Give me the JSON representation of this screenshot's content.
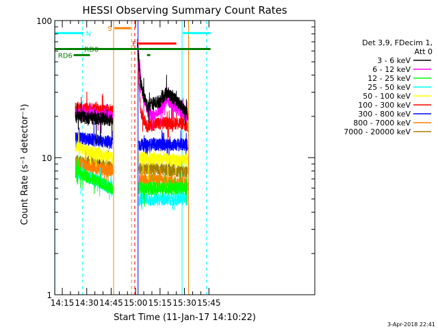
{
  "chart_data": {
    "type": "line",
    "title": "HESSI Observing Summary Count Rates",
    "xlabel": "Start Time (11-Jan-17 14:10:22)",
    "ylabel": "Count Rate (s⁻¹ detector⁻¹)",
    "yscale": "log",
    "ylim": [
      1,
      100
    ],
    "xlim_min_after_14_00": [
      10.37,
      170
    ],
    "y_ticks": [
      "1",
      "10",
      "100"
    ],
    "x_ticks": [
      {
        "label": "14:15",
        "min": 15
      },
      {
        "label": "14:30",
        "min": 30
      },
      {
        "label": "14:45",
        "min": 45
      },
      {
        "label": "15:00",
        "min": 60
      },
      {
        "label": "15:15",
        "min": 75
      },
      {
        "label": "15:30",
        "min": 90
      },
      {
        "label": "15:45",
        "min": 105
      }
    ],
    "legend": {
      "placement": "right",
      "header": [
        "Det 3,9, FDecim 1,",
        "Att 0"
      ]
    },
    "series": [
      {
        "name": "3 - 6 keV",
        "color": "#000000",
        "segments": [
          [
            [
              23,
              20
            ],
            [
              46,
              19
            ]
          ],
          [
            [
              61,
              70
            ],
            [
              63,
              35
            ],
            [
              67,
              24
            ],
            [
              75,
              26
            ],
            [
              79,
              30
            ],
            [
              87,
              25
            ],
            [
              92,
              21
            ]
          ]
        ]
      },
      {
        "name": "6 - 12 keV",
        "color": "#ff00ff",
        "segments": [
          [
            [
              23,
              21
            ],
            [
              46,
              20
            ]
          ],
          [
            [
              61,
              75
            ],
            [
              64,
              30
            ],
            [
              68,
              21
            ],
            [
              72,
              20
            ],
            [
              79,
              27
            ],
            [
              87,
              22
            ],
            [
              92,
              20
            ]
          ]
        ]
      },
      {
        "name": "12 - 25 keV",
        "color": "#00ff00",
        "segments": [
          [
            [
              23,
              8
            ],
            [
              46,
              6
            ]
          ],
          [
            [
              62,
              6
            ],
            [
              92,
              6
            ]
          ]
        ]
      },
      {
        "name": "25 - 50 keV",
        "color": "#00ffff",
        "segments": [
          [
            [
              23,
              8
            ],
            [
              46,
              6
            ]
          ],
          [
            [
              62,
              5
            ],
            [
              92,
              5
            ]
          ]
        ]
      },
      {
        "name": "50 - 100 keV",
        "color": "#ffff00",
        "segments": [
          [
            [
              23,
              12
            ],
            [
              46,
              10
            ]
          ],
          [
            [
              62,
              10
            ],
            [
              92,
              9.5
            ]
          ]
        ]
      },
      {
        "name": "100 - 300 keV",
        "color": "#ff0000",
        "segments": [
          [
            [
              23,
              23
            ],
            [
              46,
              22
            ]
          ],
          [
            [
              61,
              66
            ],
            [
              63,
              22
            ],
            [
              67,
              17
            ],
            [
              75,
              18
            ],
            [
              87,
              18
            ],
            [
              92,
              17
            ]
          ]
        ]
      },
      {
        "name": "300 - 800 keV",
        "color": "#0000ff",
        "segments": [
          [
            [
              23,
              14
            ],
            [
              46,
              13
            ]
          ],
          [
            [
              62,
              12.5
            ],
            [
              92,
              12.5
            ]
          ]
        ]
      },
      {
        "name": "800 - 7000 keV",
        "color": "#ff8000",
        "segments": [
          [
            [
              23,
              9
            ],
            [
              46,
              8
            ]
          ],
          [
            [
              62,
              7
            ],
            [
              92,
              6.5
            ]
          ]
        ]
      },
      {
        "name": "7000 - 20000 keV",
        "color": "#a08000",
        "segments": [
          [
            [
              23,
              9.5
            ],
            [
              46,
              8.5
            ]
          ],
          [
            [
              62,
              8.5
            ],
            [
              92,
              8
            ]
          ]
        ]
      }
    ],
    "annotations": {
      "vertical_lines": [
        {
          "min": 10.5,
          "color": "#00ffff",
          "style": "solid"
        },
        {
          "min": 27.5,
          "color": "#00ffff",
          "style": "dashed"
        },
        {
          "min": 46.5,
          "color": "#ff8000",
          "style": "solid"
        },
        {
          "min": 57.5,
          "color": "#ff8000",
          "style": "dashed"
        },
        {
          "min": 59.5,
          "color": "#ff0000",
          "style": "dashed"
        },
        {
          "min": 61.5,
          "color": "#0000ff",
          "style": "solid"
        },
        {
          "min": 88.5,
          "color": "#00ffff",
          "style": "solid"
        },
        {
          "min": 92.5,
          "color": "#ff8000",
          "style": "solid"
        },
        {
          "min": 103.5,
          "color": "#00ffff",
          "style": "dashed"
        }
      ],
      "flag_bars": [
        {
          "label": "N",
          "color": "#00ffff",
          "y": 81,
          "ranges": [
            [
              10.37,
              28
            ],
            [
              89,
              106
            ]
          ]
        },
        {
          "label": "S",
          "color": "#ff8000",
          "y": 88,
          "ranges": [
            [
              47,
              57
            ]
          ]
        },
        {
          "label": "F",
          "color": "#ff0000",
          "y": 68,
          "ranges": [
            [
              61,
              85
            ]
          ]
        },
        {
          "label": "RD0",
          "color": "#008000",
          "y": 62,
          "ranges": [
            [
              10.37,
              106
            ]
          ]
        },
        {
          "label": "RD6",
          "color": "#008000",
          "y": 56,
          "ranges": [
            [
              22,
              32
            ]
          ]
        }
      ],
      "flag_gap": {
        "color": "#008000",
        "y": 56,
        "ranges": [
          [
            67,
            69
          ]
        ]
      }
    },
    "timestamp": "3-Apr-2018 22:41"
  }
}
